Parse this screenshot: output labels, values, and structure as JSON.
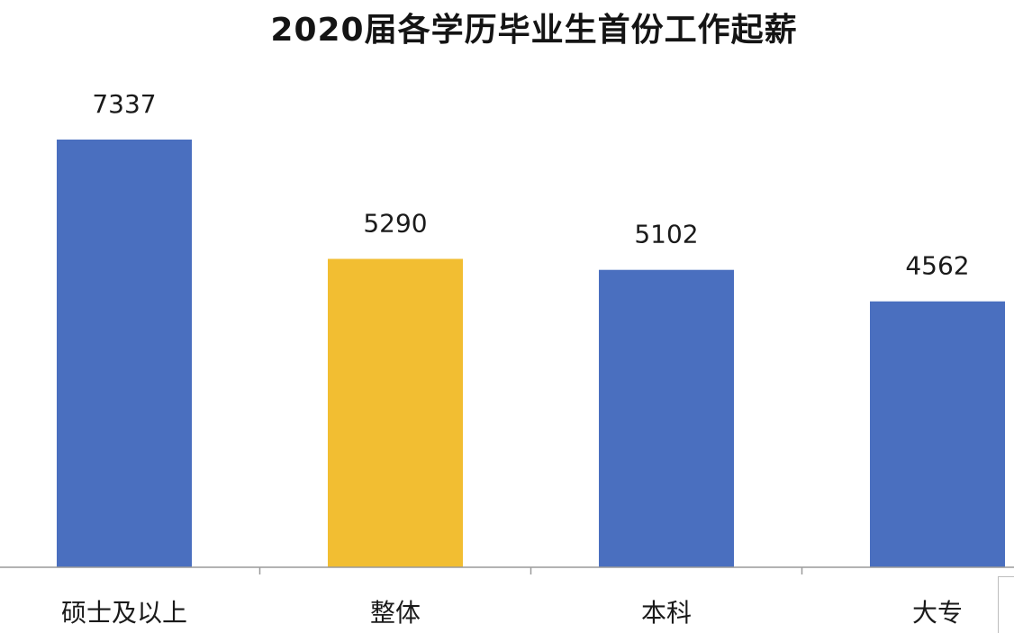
{
  "chart_data": {
    "type": "bar",
    "title": "2020届各学历毕业生首份工作起薪",
    "categories": [
      "硕士及以上",
      "整体",
      "本科",
      "大专"
    ],
    "values": [
      7337,
      5290,
      5102,
      4562
    ],
    "data_labels": [
      "7337",
      "5290",
      "5102",
      "4562"
    ],
    "highlight_category": "整体",
    "colors": {
      "default": "#4a6fbf",
      "highlight": "#f2be32",
      "axis": "#9a9a9a"
    },
    "ylim": [
      0,
      7337
    ],
    "grid": false,
    "legend": "none"
  }
}
